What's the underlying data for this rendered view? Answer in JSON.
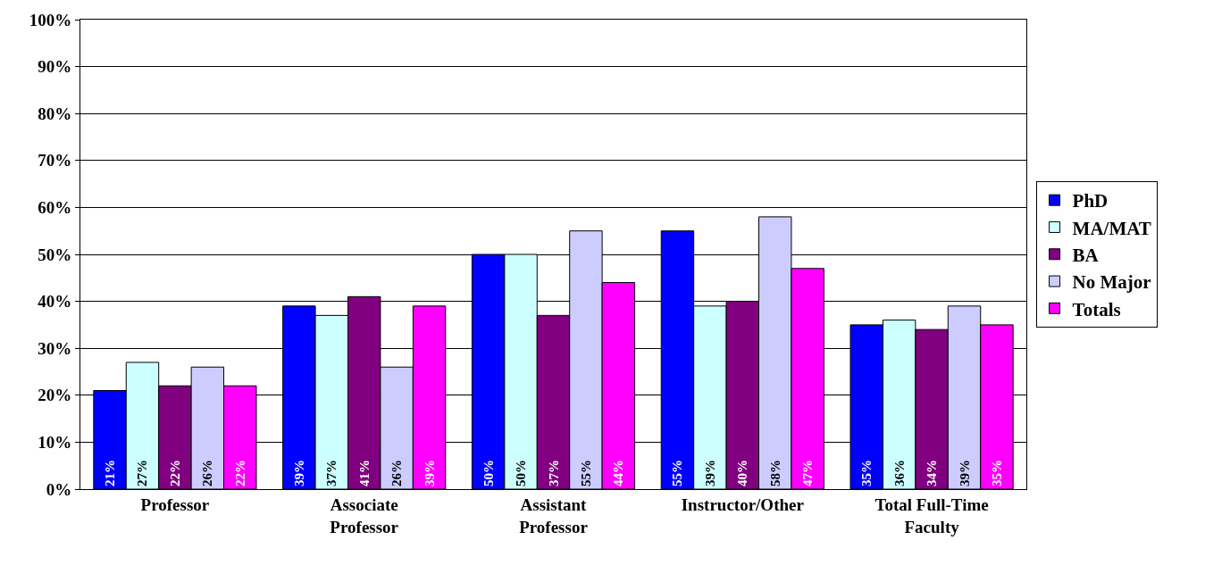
{
  "chart_data": {
    "type": "bar",
    "categories": [
      "Professor",
      "Associate\nProfessor",
      "Assistant\nProfessor",
      "Instructor/Other",
      "Total Full-Time\nFaculty"
    ],
    "series": [
      {
        "name": "PhD",
        "color": "#0000ff",
        "values": [
          21,
          39,
          50,
          55,
          35
        ],
        "value_labels": [
          "21%",
          "39%",
          "50%",
          "55%",
          "35%"
        ]
      },
      {
        "name": "MA/MAT",
        "color": "#ccffff",
        "values": [
          27,
          37,
          50,
          39,
          36
        ],
        "value_labels": [
          "27%",
          "37%",
          "50%",
          "39%",
          "36%"
        ]
      },
      {
        "name": "BA",
        "color": "#800080",
        "values": [
          22,
          41,
          37,
          40,
          34
        ],
        "value_labels": [
          "22%",
          "41%",
          "37%",
          "40%",
          "34%"
        ]
      },
      {
        "name": "No Major",
        "color": "#ccccff",
        "values": [
          26,
          26,
          55,
          58,
          39
        ],
        "value_labels": [
          "26%",
          "26%",
          "55%",
          "58%",
          "39%"
        ]
      },
      {
        "name": "Totals",
        "color": "#ff00ff",
        "values": [
          22,
          39,
          44,
          47,
          35
        ],
        "value_labels": [
          "22%",
          "39%",
          "44%",
          "47%",
          "35%"
        ]
      }
    ],
    "ylim": [
      0,
      100
    ],
    "yticks": [
      {
        "value": 0,
        "label": "0%"
      },
      {
        "value": 10,
        "label": "10%"
      },
      {
        "value": 20,
        "label": "20%"
      },
      {
        "value": 30,
        "label": "30%"
      },
      {
        "value": 40,
        "label": "40%"
      },
      {
        "value": 50,
        "label": "50%"
      },
      {
        "value": 60,
        "label": "60%"
      },
      {
        "value": 70,
        "label": "70%"
      },
      {
        "value": 80,
        "label": "80%"
      },
      {
        "value": 90,
        "label": "90%"
      },
      {
        "value": 100,
        "label": "100%"
      }
    ],
    "grid": "y",
    "legend": "right"
  }
}
